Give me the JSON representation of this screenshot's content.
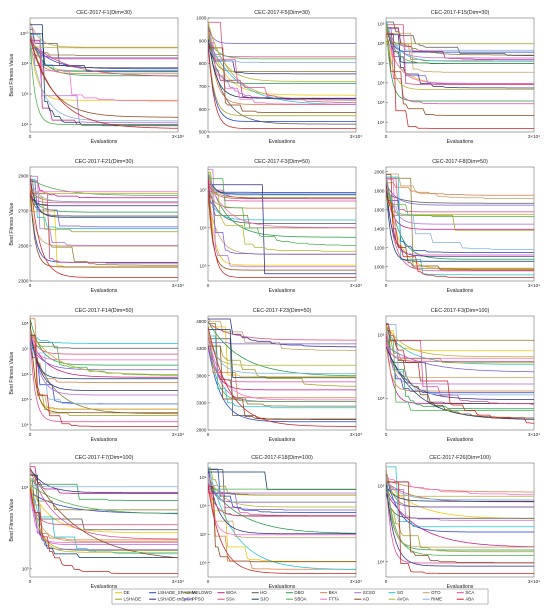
{
  "figure": {
    "common_xlabel": "Evaluations",
    "common_ylabel": "Best Fitness Value",
    "x_max_label": "3×10⁴",
    "x_zero_label": "0"
  },
  "legend": {
    "entries": [
      {
        "name": "DE",
        "color": "#f5c400"
      },
      {
        "name": "LSHADE_SPACMA",
        "color": "#1f3fd8"
      },
      {
        "name": "MELGWO",
        "color": "#8a7a2a"
      },
      {
        "name": "WOA",
        "color": "#c71585"
      },
      {
        "name": "HO",
        "color": "#555555"
      },
      {
        "name": "DBO",
        "color": "#1e9e4a"
      },
      {
        "name": "BKA",
        "color": "#e07a3c"
      },
      {
        "name": "SCSO",
        "color": "#b26ad8"
      },
      {
        "name": "SO",
        "color": "#19c4d6"
      },
      {
        "name": "GTO",
        "color": "#c8a060"
      },
      {
        "name": "SCA",
        "color": "#e0489a"
      },
      {
        "name": "LSHADE",
        "color": "#a0a020"
      },
      {
        "name": "LSHADE-cnEpSin",
        "color": "#2b2b8c"
      },
      {
        "name": "PPSO",
        "color": "#7a5ad8"
      },
      {
        "name": "SSA",
        "color": "#d84a7a"
      },
      {
        "name": "SJO",
        "color": "#0a3a6a"
      },
      {
        "name": "SBOA",
        "color": "#4ab04a"
      },
      {
        "name": "FTTA",
        "color": "#ff66cc"
      },
      {
        "name": "AO",
        "color": "#8b4513"
      },
      {
        "name": "AVOA",
        "color": "#b5b52a"
      },
      {
        "name": "RIME",
        "color": "#7fb0e0"
      },
      {
        "name": "ABA",
        "color": "#d02020"
      }
    ]
  },
  "chart_data": [
    {
      "type": "line",
      "title": "CEC-2017-F1(Dim=30)",
      "xlabel": "Evaluations",
      "ylabel": "Best Fitness Value",
      "xlim": [
        0,
        30000
      ],
      "ylog": true,
      "ytick_labels": [
        "10¹⁰",
        "10⁸",
        "10⁶",
        "10⁴"
      ],
      "ytick_values": [
        10,
        8,
        6,
        4
      ],
      "ylim": [
        3.5,
        11
      ]
    },
    {
      "type": "line",
      "title": "CEC-2017-F5(Dim=30)",
      "xlabel": "Evaluations",
      "ylabel": "",
      "xlim": [
        0,
        30000
      ],
      "ylog": false,
      "ytick_labels": [
        "1000",
        "900",
        "800",
        "700",
        "600",
        "500"
      ],
      "ytick_values": [
        1000,
        900,
        800,
        700,
        600,
        500
      ],
      "ylim": [
        500,
        1000
      ]
    },
    {
      "type": "line",
      "title": "CEC-2017-F15(Dim=30)",
      "xlabel": "Evaluations",
      "ylabel": "",
      "xlim": [
        0,
        30000
      ],
      "ylog": true,
      "ytick_labels": [
        "10⁹",
        "10⁸",
        "10⁷",
        "10⁶",
        "10⁵",
        "10⁴"
      ],
      "ytick_values": [
        9,
        8,
        7,
        6,
        5,
        4
      ],
      "ylim": [
        3.5,
        9.3
      ]
    },
    {
      "type": "line",
      "title": "CEC-2017-F21(Dim=30)",
      "xlabel": "Evaluations",
      "ylabel": "Best Fitness Value",
      "xlim": [
        0,
        30000
      ],
      "ylog": false,
      "ytick_labels": [
        "2900",
        "2700",
        "2500",
        "2300"
      ],
      "ytick_values": [
        2900,
        2700,
        2500,
        2300
      ],
      "ylim": [
        2300,
        2950
      ]
    },
    {
      "type": "line",
      "title": "CEC-2017-F3(Dim=50)",
      "xlabel": "Evaluations",
      "ylabel": "",
      "xlim": [
        0,
        30000
      ],
      "ylog": true,
      "ytick_labels": [
        "10⁷",
        "10⁶",
        "10⁵"
      ],
      "ytick_values": [
        7,
        6,
        5
      ],
      "ylim": [
        4.6,
        7.6
      ]
    },
    {
      "type": "line",
      "title": "CEC-2017-F8(Dim=50)",
      "xlabel": "Evaluations",
      "ylabel": "",
      "xlim": [
        0,
        30000
      ],
      "ylog": false,
      "ytick_labels": [
        "2000",
        "1800",
        "1600",
        "1400",
        "1200",
        "1000"
      ],
      "ytick_values": [
        2000,
        1800,
        1600,
        1400,
        1200,
        1000
      ],
      "ylim": [
        850,
        2050
      ]
    },
    {
      "type": "line",
      "title": "CEC-2017-F14(Dim=50)",
      "xlabel": "Evaluations",
      "ylabel": "Best Fitness Value",
      "xlim": [
        0,
        30000
      ],
      "ylog": true,
      "ytick_labels": [
        "10⁸",
        "10⁷",
        "10⁶",
        "10⁵",
        "10⁴"
      ],
      "ytick_values": [
        8,
        7,
        6,
        5,
        4
      ],
      "ylim": [
        3.8,
        8.3
      ]
    },
    {
      "type": "line",
      "title": "CEC-2017-F23(Dim=50)",
      "xlabel": "Evaluations",
      "ylabel": "",
      "xlim": [
        0,
        30000
      ],
      "ylog": false,
      "ytick_labels": [
        "4800",
        "4300",
        "3800",
        "3300",
        "2800"
      ],
      "ytick_values": [
        4800,
        4300,
        3800,
        3300,
        2800
      ],
      "ylim": [
        2800,
        4900
      ]
    },
    {
      "type": "line",
      "title": "CEC-2017-F3(Dim=100)",
      "xlabel": "Evaluations",
      "ylabel": "",
      "xlim": [
        0,
        30000
      ],
      "ylog": true,
      "ytick_labels": [
        "10⁶",
        "10⁵"
      ],
      "ytick_values": [
        6,
        5
      ],
      "ylim": [
        4.5,
        6.3
      ]
    },
    {
      "type": "line",
      "title": "CEC-2017-F7(Dim=100)",
      "xlabel": "Evaluations",
      "ylabel": "Best Fitness Value",
      "xlim": [
        0,
        30000
      ],
      "ylog": true,
      "ytick_labels": [
        "10⁴",
        "10³"
      ],
      "ytick_values": [
        4,
        3
      ],
      "ylim": [
        2.9,
        4.3
      ]
    },
    {
      "type": "line",
      "title": "CEC-2017-F18(Dim=100)",
      "xlabel": "Evaluations",
      "ylabel": "",
      "xlim": [
        0,
        30000
      ],
      "ylog": true,
      "ytick_labels": [
        "10⁹",
        "10⁸",
        "10⁷",
        "10⁶"
      ],
      "ytick_values": [
        9,
        8,
        7,
        6
      ],
      "ylim": [
        5.5,
        9.5
      ]
    },
    {
      "type": "line",
      "title": "CEC-2017-F26(Dim=100)",
      "xlabel": "Evaluations",
      "ylabel": "",
      "xlim": [
        0,
        30000
      ],
      "ylog": true,
      "ytick_labels": [
        "10⁵",
        "10⁴"
      ],
      "ytick_values": [
        5,
        4
      ],
      "ylim": [
        3.8,
        5.3
      ]
    }
  ]
}
